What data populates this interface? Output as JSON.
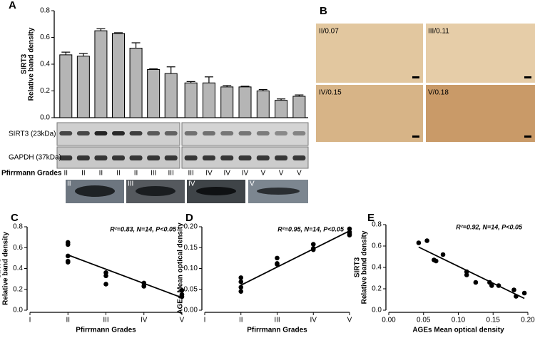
{
  "chart_data": [
    {
      "type": "bar",
      "label": "A",
      "y_label": [
        "SIRT3",
        "Relative band density"
      ],
      "x_label": "Pfirrmann Grades",
      "categories": [
        "II",
        "II",
        "II",
        "II",
        "II",
        "III",
        "III",
        "III",
        "IV",
        "IV",
        "IV",
        "V",
        "V",
        "V"
      ],
      "values": [
        0.47,
        0.46,
        0.65,
        0.63,
        0.52,
        0.36,
        0.33,
        0.26,
        0.26,
        0.23,
        0.23,
        0.2,
        0.13,
        0.16
      ],
      "errors": [
        0.02,
        0.02,
        0.015,
        0.005,
        0.04,
        0.005,
        0.05,
        0.01,
        0.045,
        0.01,
        0.005,
        0.01,
        0.01,
        0.01
      ],
      "color": "#b5b5b5",
      "ylim": [
        0,
        0.8
      ],
      "yticks": [
        {
          "value": 0,
          "label": "0.0"
        },
        0.2,
        0.4,
        0.6,
        0.8
      ]
    },
    {
      "type": "scatter",
      "label": "C",
      "y_label": [
        "SIRT3",
        "Relative band density"
      ],
      "x_label": "Pfirrmann Grades",
      "annotation": "R²=0.83, N=14, P<0.05",
      "x": [
        2,
        2,
        2,
        2,
        2,
        3,
        3,
        3,
        4,
        4,
        4,
        5,
        5,
        5
      ],
      "values": [
        0.65,
        0.63,
        0.52,
        0.47,
        0.46,
        0.36,
        0.33,
        0.25,
        0.26,
        0.23,
        0.23,
        0.19,
        0.15,
        0.13
      ],
      "fit": {
        "x": [
          2,
          5
        ],
        "y": [
          0.53,
          0.12
        ]
      },
      "xlim": [
        1,
        5
      ],
      "xticks": [
        {
          "value": 1,
          "label": "I"
        },
        {
          "value": 2,
          "label": "II"
        },
        {
          "value": 3,
          "label": "III"
        },
        {
          "value": 4,
          "label": "IV"
        },
        {
          "value": 5,
          "label": "V"
        }
      ],
      "ylim": [
        0,
        0.8
      ],
      "yticks": [
        {
          "value": 0,
          "label": "0.0"
        },
        0.2,
        0.4,
        0.6,
        0.8
      ]
    },
    {
      "type": "scatter",
      "label": "D",
      "y_label": [
        "AGEs Mean optical density"
      ],
      "x_label": "Pfirrmann Grades",
      "annotation": "R²=0.95, N=14, P<0.05",
      "x": [
        2,
        2,
        2,
        2,
        3,
        3,
        3,
        4,
        4,
        4,
        5,
        5,
        5,
        5
      ],
      "values": [
        0.078,
        0.068,
        0.055,
        0.045,
        0.125,
        0.112,
        0.11,
        0.158,
        0.148,
        0.145,
        0.195,
        0.187,
        0.183,
        0.18
      ],
      "fit": {
        "x": [
          2,
          5
        ],
        "y": [
          0.06,
          0.19
        ]
      },
      "xlim": [
        1,
        5
      ],
      "xticks": [
        {
          "value": 1,
          "label": "I"
        },
        {
          "value": 2,
          "label": "II"
        },
        {
          "value": 3,
          "label": "III"
        },
        {
          "value": 4,
          "label": "IV"
        },
        {
          "value": 5,
          "label": "V"
        }
      ],
      "ylim": [
        0,
        0.2
      ],
      "yticks": [
        {
          "value": 0,
          "label": "0.00"
        },
        0.05,
        {
          "value": 0.1,
          "label": "0.10"
        },
        0.15,
        {
          "value": 0.2,
          "label": "0.20"
        }
      ]
    },
    {
      "type": "scatter",
      "label": "E",
      "y_label": [
        "SIRT3",
        "Relative band density"
      ],
      "x_label": "AGEs Mean optical density",
      "annotation": "R²=0.92, N=14, P<0.05",
      "x": [
        0.043,
        0.055,
        0.065,
        0.068,
        0.078,
        0.112,
        0.112,
        0.125,
        0.145,
        0.148,
        0.158,
        0.18,
        0.183,
        0.195
      ],
      "values": [
        0.63,
        0.65,
        0.47,
        0.46,
        0.52,
        0.36,
        0.33,
        0.26,
        0.26,
        0.23,
        0.23,
        0.19,
        0.13,
        0.16
      ],
      "fit": {
        "x": [
          0.043,
          0.195
        ],
        "y": [
          0.59,
          0.11
        ]
      },
      "xlim": [
        0,
        0.2
      ],
      "xticks": [
        {
          "value": 0,
          "label": "0.00"
        },
        0.05,
        {
          "value": 0.1,
          "label": "0.10"
        },
        0.15,
        {
          "value": 0.2,
          "label": "0.20"
        }
      ],
      "ylim": [
        0,
        0.8
      ],
      "yticks": [
        {
          "value": 0,
          "label": "0.0"
        },
        0.2,
        0.4,
        0.6,
        0.8
      ]
    }
  ],
  "blot": {
    "rows": [
      "SIRT3 (23kDa)",
      "GAPDH (37kDa)"
    ]
  },
  "mri": [
    "II",
    "III",
    "IV",
    "V"
  ],
  "histology": {
    "label": "B",
    "images": [
      "II/0.07",
      "III/0.11",
      "IV/0.15",
      "V/0.18"
    ]
  }
}
